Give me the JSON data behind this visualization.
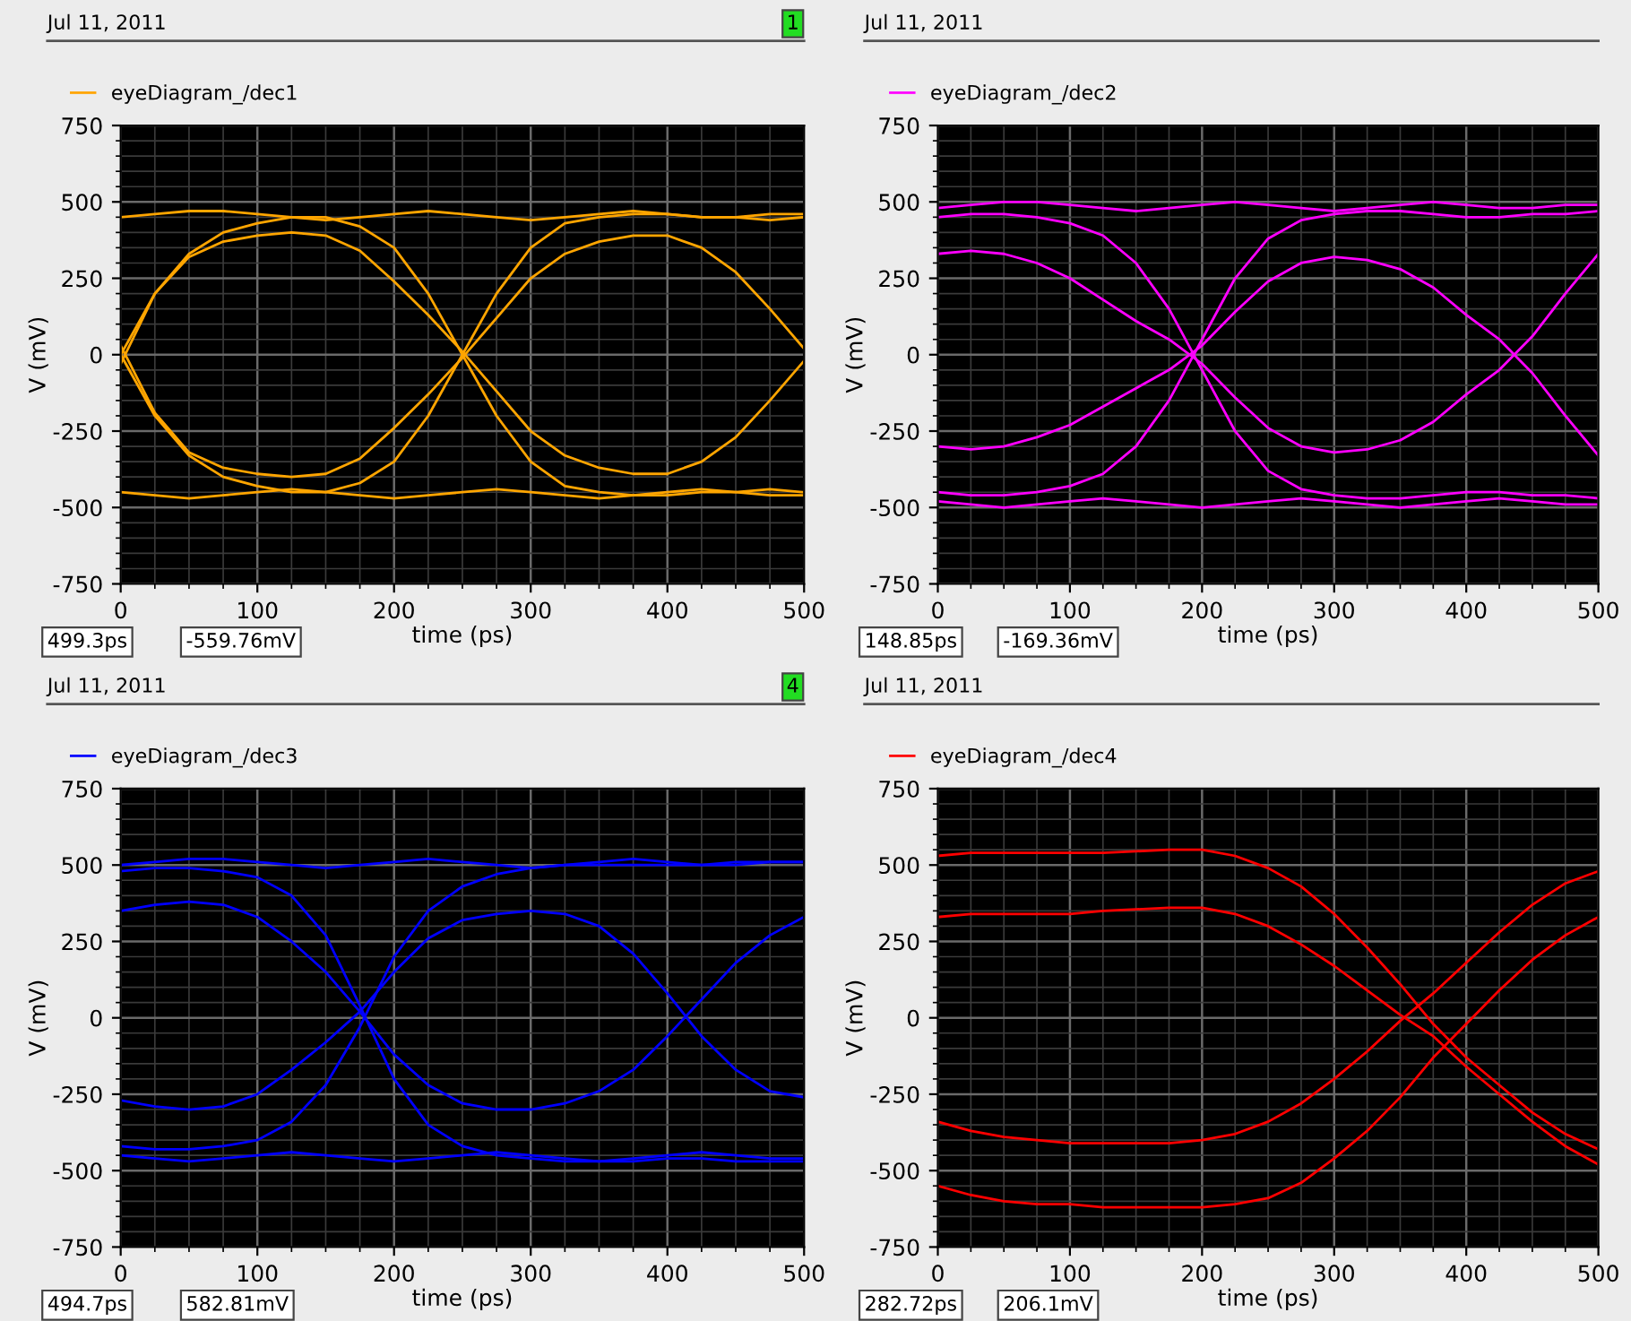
{
  "chart_data": [
    {
      "type": "line",
      "title": "Jul 11, 2011",
      "xlabel": "time (ps)",
      "ylabel": "V (mV)",
      "xlim": [
        0,
        500
      ],
      "xticks": [
        0,
        100,
        200,
        300,
        400,
        500
      ],
      "ylim": [
        -750,
        750
      ],
      "yticks": [
        -750,
        -500,
        -250,
        0,
        250,
        500,
        750
      ],
      "grid": true,
      "legend": "top left",
      "annotations": [
        "499.3ps",
        "-559.76mV",
        "1"
      ],
      "x": [
        0,
        25,
        50,
        75,
        100,
        125,
        150,
        175,
        200,
        225,
        250,
        275,
        300,
        325,
        350,
        375,
        400,
        425,
        450,
        475,
        500
      ],
      "series": [
        {
          "name": "eyeDiagram_/dec1",
          "color": "#ffa500",
          "values": [
            450,
            460,
            470,
            470,
            460,
            450,
            440,
            450,
            460,
            470,
            460,
            450,
            440,
            450,
            460,
            470,
            460,
            450,
            450,
            460,
            460
          ]
        },
        {
          "color": "#ffa500",
          "values": [
            -450,
            -460,
            -470,
            -460,
            -450,
            -440,
            -450,
            -460,
            -470,
            -460,
            -450,
            -440,
            -450,
            -460,
            -470,
            -460,
            -450,
            -440,
            -450,
            -460,
            -460
          ]
        },
        {
          "color": "#ffa500",
          "values": [
            -30,
            200,
            320,
            370,
            390,
            400,
            390,
            340,
            240,
            130,
            10,
            -120,
            -250,
            -330,
            -370,
            -390,
            -390,
            -350,
            -270,
            -150,
            -20
          ]
        },
        {
          "color": "#ffa500",
          "values": [
            30,
            -190,
            -320,
            -370,
            -390,
            -400,
            -390,
            -340,
            -240,
            -130,
            -10,
            120,
            250,
            330,
            370,
            390,
            390,
            350,
            270,
            150,
            20
          ]
        },
        {
          "color": "#ffa500",
          "values": [
            0,
            -200,
            -330,
            -400,
            -430,
            -450,
            -450,
            -420,
            -350,
            -200,
            0,
            200,
            350,
            430,
            450,
            460,
            460,
            450,
            450,
            440,
            450
          ]
        },
        {
          "color": "#ffa500",
          "values": [
            0,
            200,
            330,
            400,
            430,
            450,
            450,
            420,
            350,
            200,
            0,
            -200,
            -350,
            -430,
            -450,
            -460,
            -460,
            -450,
            -450,
            -440,
            -450
          ]
        }
      ]
    },
    {
      "type": "line",
      "title": "Jul 11, 2011",
      "xlabel": "time (ps)",
      "ylabel": "V (mV)",
      "xlim": [
        0,
        500
      ],
      "xticks": [
        0,
        100,
        200,
        300,
        400,
        500
      ],
      "ylim": [
        -750,
        750
      ],
      "yticks": [
        -750,
        -500,
        -250,
        0,
        250,
        500,
        750
      ],
      "grid": true,
      "legend": "top left",
      "annotations": [
        "148.85ps",
        "-169.36mV"
      ],
      "x": [
        0,
        25,
        50,
        75,
        100,
        125,
        150,
        175,
        200,
        225,
        250,
        275,
        300,
        325,
        350,
        375,
        400,
        425,
        450,
        475,
        500
      ],
      "series": [
        {
          "name": "eyeDiagram_/dec2",
          "color": "#ff00ff",
          "values": [
            480,
            490,
            500,
            500,
            490,
            480,
            470,
            480,
            490,
            500,
            490,
            480,
            470,
            480,
            490,
            500,
            490,
            480,
            480,
            490,
            490
          ]
        },
        {
          "color": "#ff00ff",
          "values": [
            -480,
            -490,
            -500,
            -490,
            -480,
            -470,
            -480,
            -490,
            -500,
            -490,
            -480,
            -470,
            -480,
            -490,
            -500,
            -490,
            -480,
            -470,
            -480,
            -490,
            -490
          ]
        },
        {
          "color": "#ff00ff",
          "values": [
            330,
            340,
            330,
            300,
            250,
            180,
            110,
            50,
            -30,
            -140,
            -240,
            -300,
            -320,
            -310,
            -280,
            -220,
            -130,
            -50,
            60,
            200,
            330
          ]
        },
        {
          "color": "#ff00ff",
          "values": [
            -300,
            -310,
            -300,
            -270,
            -230,
            -170,
            -110,
            -50,
            30,
            140,
            240,
            300,
            320,
            310,
            280,
            220,
            130,
            50,
            -60,
            -200,
            -330
          ]
        },
        {
          "color": "#ff00ff",
          "values": [
            -450,
            -460,
            -460,
            -450,
            -430,
            -390,
            -300,
            -150,
            50,
            250,
            380,
            440,
            460,
            470,
            470,
            460,
            450,
            450,
            460,
            460,
            470
          ]
        },
        {
          "color": "#ff00ff",
          "values": [
            450,
            460,
            460,
            450,
            430,
            390,
            300,
            150,
            -50,
            -250,
            -380,
            -440,
            -460,
            -470,
            -470,
            -460,
            -450,
            -450,
            -460,
            -460,
            -470
          ]
        }
      ]
    },
    {
      "type": "line",
      "title": "Jul 11, 2011",
      "xlabel": "time (ps)",
      "ylabel": "V (mV)",
      "xlim": [
        0,
        500
      ],
      "xticks": [
        0,
        100,
        200,
        300,
        400,
        500
      ],
      "ylim": [
        -750,
        750
      ],
      "yticks": [
        -750,
        -500,
        -250,
        0,
        250,
        500,
        750
      ],
      "grid": true,
      "legend": "top left",
      "annotations": [
        "494.7ps",
        "582.81mV",
        "4"
      ],
      "x": [
        0,
        25,
        50,
        75,
        100,
        125,
        150,
        175,
        200,
        225,
        250,
        275,
        300,
        325,
        350,
        375,
        400,
        425,
        450,
        475,
        500
      ],
      "series": [
        {
          "name": "eyeDiagram_/dec3",
          "color": "#0000ff",
          "values": [
            500,
            510,
            520,
            520,
            510,
            500,
            490,
            500,
            510,
            520,
            510,
            500,
            490,
            500,
            510,
            520,
            510,
            500,
            500,
            510,
            510
          ]
        },
        {
          "color": "#0000ff",
          "values": [
            -450,
            -460,
            -470,
            -460,
            -450,
            -440,
            -450,
            -460,
            -470,
            -460,
            -450,
            -440,
            -450,
            -460,
            -470,
            -460,
            -450,
            -440,
            -450,
            -460,
            -460
          ]
        },
        {
          "color": "#0000ff",
          "values": [
            350,
            370,
            380,
            370,
            330,
            250,
            150,
            20,
            -120,
            -220,
            -280,
            -300,
            -300,
            -280,
            -240,
            -170,
            -60,
            60,
            180,
            270,
            330
          ]
        },
        {
          "color": "#0000ff",
          "values": [
            -270,
            -290,
            -300,
            -290,
            -250,
            -170,
            -80,
            20,
            150,
            260,
            320,
            340,
            350,
            340,
            300,
            210,
            80,
            -60,
            -170,
            -240,
            -260
          ]
        },
        {
          "color": "#0000ff",
          "values": [
            -420,
            -430,
            -430,
            -420,
            -400,
            -340,
            -220,
            -30,
            200,
            350,
            430,
            470,
            490,
            500,
            500,
            500,
            500,
            500,
            510,
            510,
            510
          ]
        },
        {
          "color": "#0000ff",
          "values": [
            480,
            490,
            490,
            480,
            460,
            400,
            270,
            40,
            -200,
            -350,
            -420,
            -450,
            -460,
            -470,
            -470,
            -470,
            -460,
            -460,
            -470,
            -470,
            -470
          ]
        }
      ]
    },
    {
      "type": "line",
      "title": "Jul 11, 2011",
      "xlabel": "time (ps)",
      "ylabel": "V (mV)",
      "xlim": [
        0,
        500
      ],
      "xticks": [
        0,
        100,
        200,
        300,
        400,
        500
      ],
      "ylim": [
        -750,
        750
      ],
      "yticks": [
        -750,
        -500,
        -250,
        0,
        250,
        500,
        750
      ],
      "grid": true,
      "legend": "top left",
      "annotations": [
        "282.72ps",
        "206.1mV"
      ],
      "x": [
        0,
        25,
        50,
        75,
        100,
        125,
        150,
        175,
        200,
        225,
        250,
        275,
        300,
        325,
        350,
        375,
        400,
        425,
        450,
        475,
        500
      ],
      "series": [
        {
          "name": "eyeDiagram_/dec4",
          "color": "#ff0000",
          "values": [
            530,
            540,
            540,
            540,
            540,
            540,
            545,
            550,
            550,
            530,
            490,
            430,
            340,
            230,
            110,
            -20,
            -130,
            -220,
            -310,
            -380,
            -430
          ]
        },
        {
          "color": "#ff0000",
          "values": [
            330,
            340,
            340,
            340,
            340,
            350,
            355,
            360,
            360,
            340,
            300,
            240,
            170,
            90,
            10,
            -60,
            -160,
            -250,
            -340,
            -420,
            -480
          ]
        },
        {
          "color": "#ff0000",
          "values": [
            -340,
            -370,
            -390,
            -400,
            -410,
            -410,
            -410,
            -410,
            -400,
            -380,
            -340,
            -280,
            -200,
            -110,
            -10,
            80,
            180,
            280,
            370,
            440,
            480
          ]
        },
        {
          "color": "#ff0000",
          "values": [
            -550,
            -580,
            -600,
            -610,
            -610,
            -620,
            -620,
            -620,
            -620,
            -610,
            -590,
            -540,
            -460,
            -370,
            -260,
            -130,
            -20,
            90,
            190,
            270,
            330
          ]
        }
      ]
    }
  ]
}
